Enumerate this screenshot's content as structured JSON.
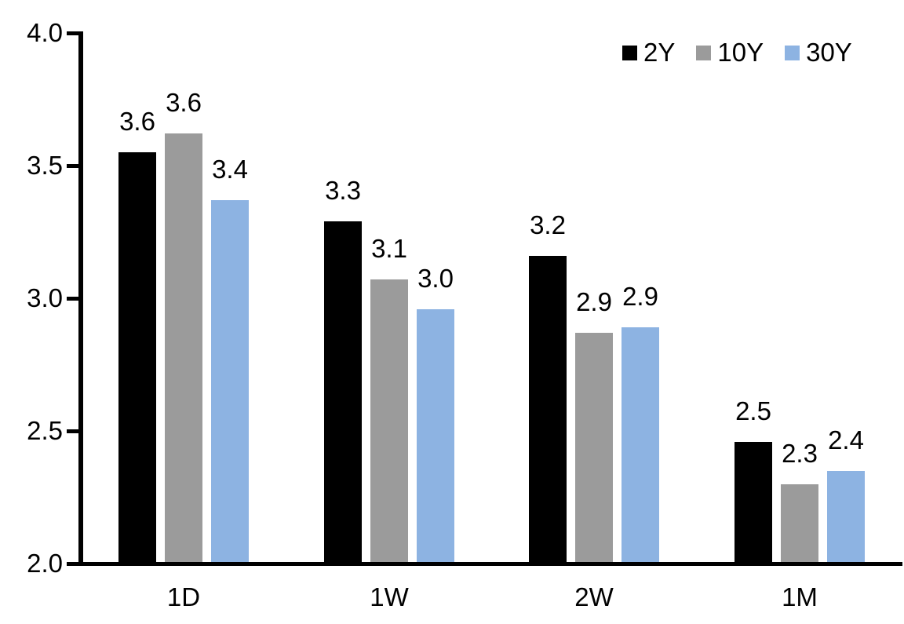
{
  "chart_data": {
    "type": "bar",
    "title": "",
    "categories": [
      "1D",
      "1W",
      "2W",
      "1M"
    ],
    "series": [
      {
        "name": "2Y",
        "color": "#000000",
        "values": [
          3.55,
          3.29,
          3.16,
          2.46
        ],
        "labels": [
          "3.6",
          "3.3",
          "3.2",
          "2.5"
        ]
      },
      {
        "name": "10Y",
        "color": "#9B9B9B",
        "values": [
          3.62,
          3.07,
          2.87,
          2.3
        ],
        "labels": [
          "3.6",
          "3.1",
          "2.9",
          "2.3"
        ]
      },
      {
        "name": "30Y",
        "color": "#8DB3E2",
        "values": [
          3.37,
          2.96,
          2.89,
          2.35
        ],
        "labels": [
          "3.4",
          "3.0",
          "2.9",
          "2.4"
        ]
      }
    ],
    "y_axis": {
      "min": 2.0,
      "max": 4.0,
      "tick_labels": [
        "4.0",
        "3.5",
        "3.0",
        "2.5",
        "2.0"
      ],
      "tick_values": [
        4.0,
        3.5,
        3.0,
        2.5,
        2.0
      ]
    },
    "xlabel": "",
    "ylabel": "",
    "legend": {
      "position": "top-right",
      "entries": [
        "2Y",
        "10Y",
        "30Y"
      ]
    },
    "grid": false,
    "axis_color": "#000000",
    "background_color": "#FFFFFF",
    "data_labels_shown": true
  }
}
